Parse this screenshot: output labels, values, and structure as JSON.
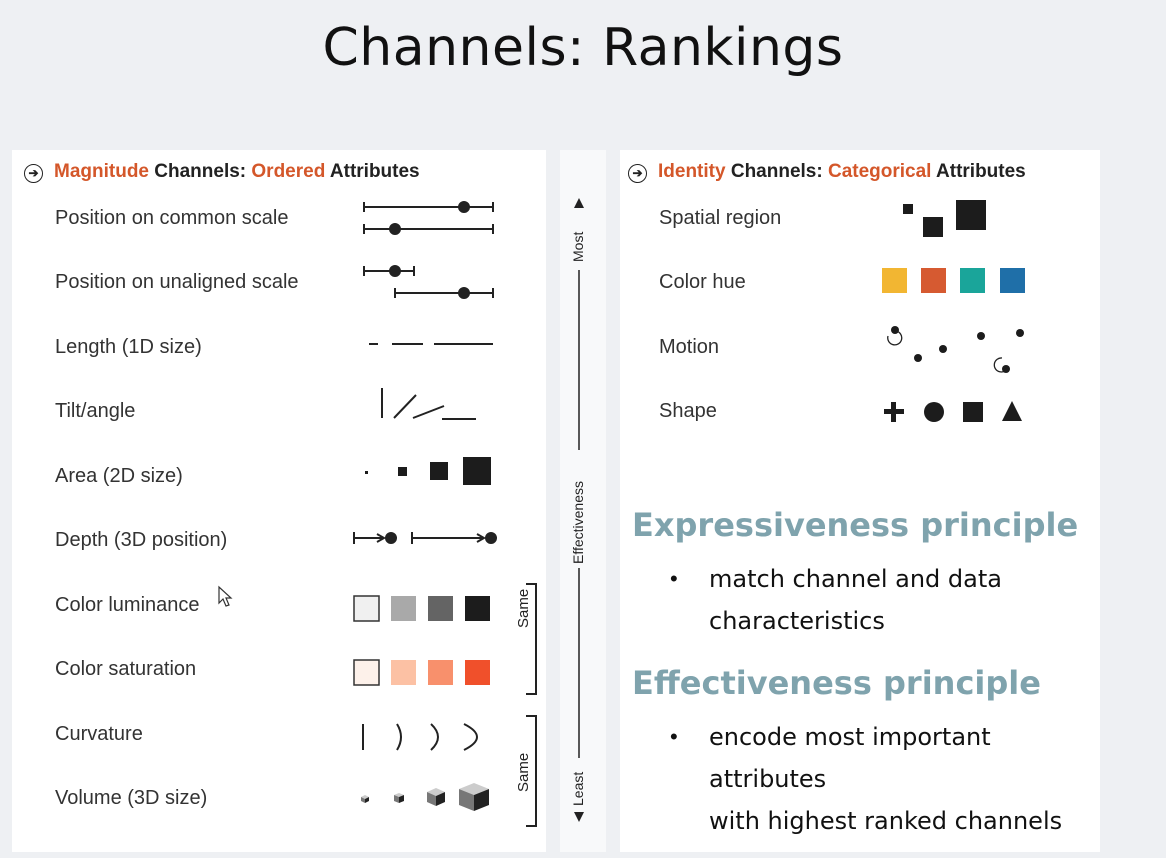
{
  "title": "Channels: Rankings",
  "magnitude": {
    "header": {
      "w1": "Magnitude",
      "w2": " Channels: ",
      "w3": "Ordered",
      "w4": " Attributes"
    },
    "rows": [
      "Position on common scale",
      "Position on unaligned scale",
      "Length (1D size)",
      "Tilt/angle",
      "Area (2D size)",
      "Depth (3D position)",
      "Color luminance",
      "Color saturation",
      "Curvature",
      "Volume (3D size)"
    ],
    "same_labels": [
      "Same",
      "Same"
    ],
    "luminance_colors": [
      "#f0f0f0",
      "#a9a9a9",
      "#646464",
      "#1c1c1c"
    ],
    "saturation_colors": [
      "#fdf1ea",
      "#fcc1a4",
      "#f8906c",
      "#f0502b"
    ]
  },
  "effectiveness_axis": {
    "top": "Most",
    "middle": "Effectiveness",
    "bottom": "Least"
  },
  "identity": {
    "header": {
      "w1": "Identity",
      "w2": " Channels: ",
      "w3": "Categorical",
      "w4": " Attributes"
    },
    "rows": [
      "Spatial region",
      "Color hue",
      "Motion",
      "Shape"
    ],
    "hue_colors": [
      "#f2b632",
      "#d65a31",
      "#1aa59a",
      "#1f6fa8"
    ],
    "shape_glyphs": [
      "plus",
      "circle",
      "square",
      "triangle"
    ]
  },
  "principles": [
    {
      "title": "Expressiveness principle",
      "bullets": [
        "match channel and data",
        "characteristics"
      ]
    },
    {
      "title": "Effectiveness principle",
      "bullets": [
        "encode most important attributes",
        "with highest ranked channels"
      ]
    }
  ]
}
